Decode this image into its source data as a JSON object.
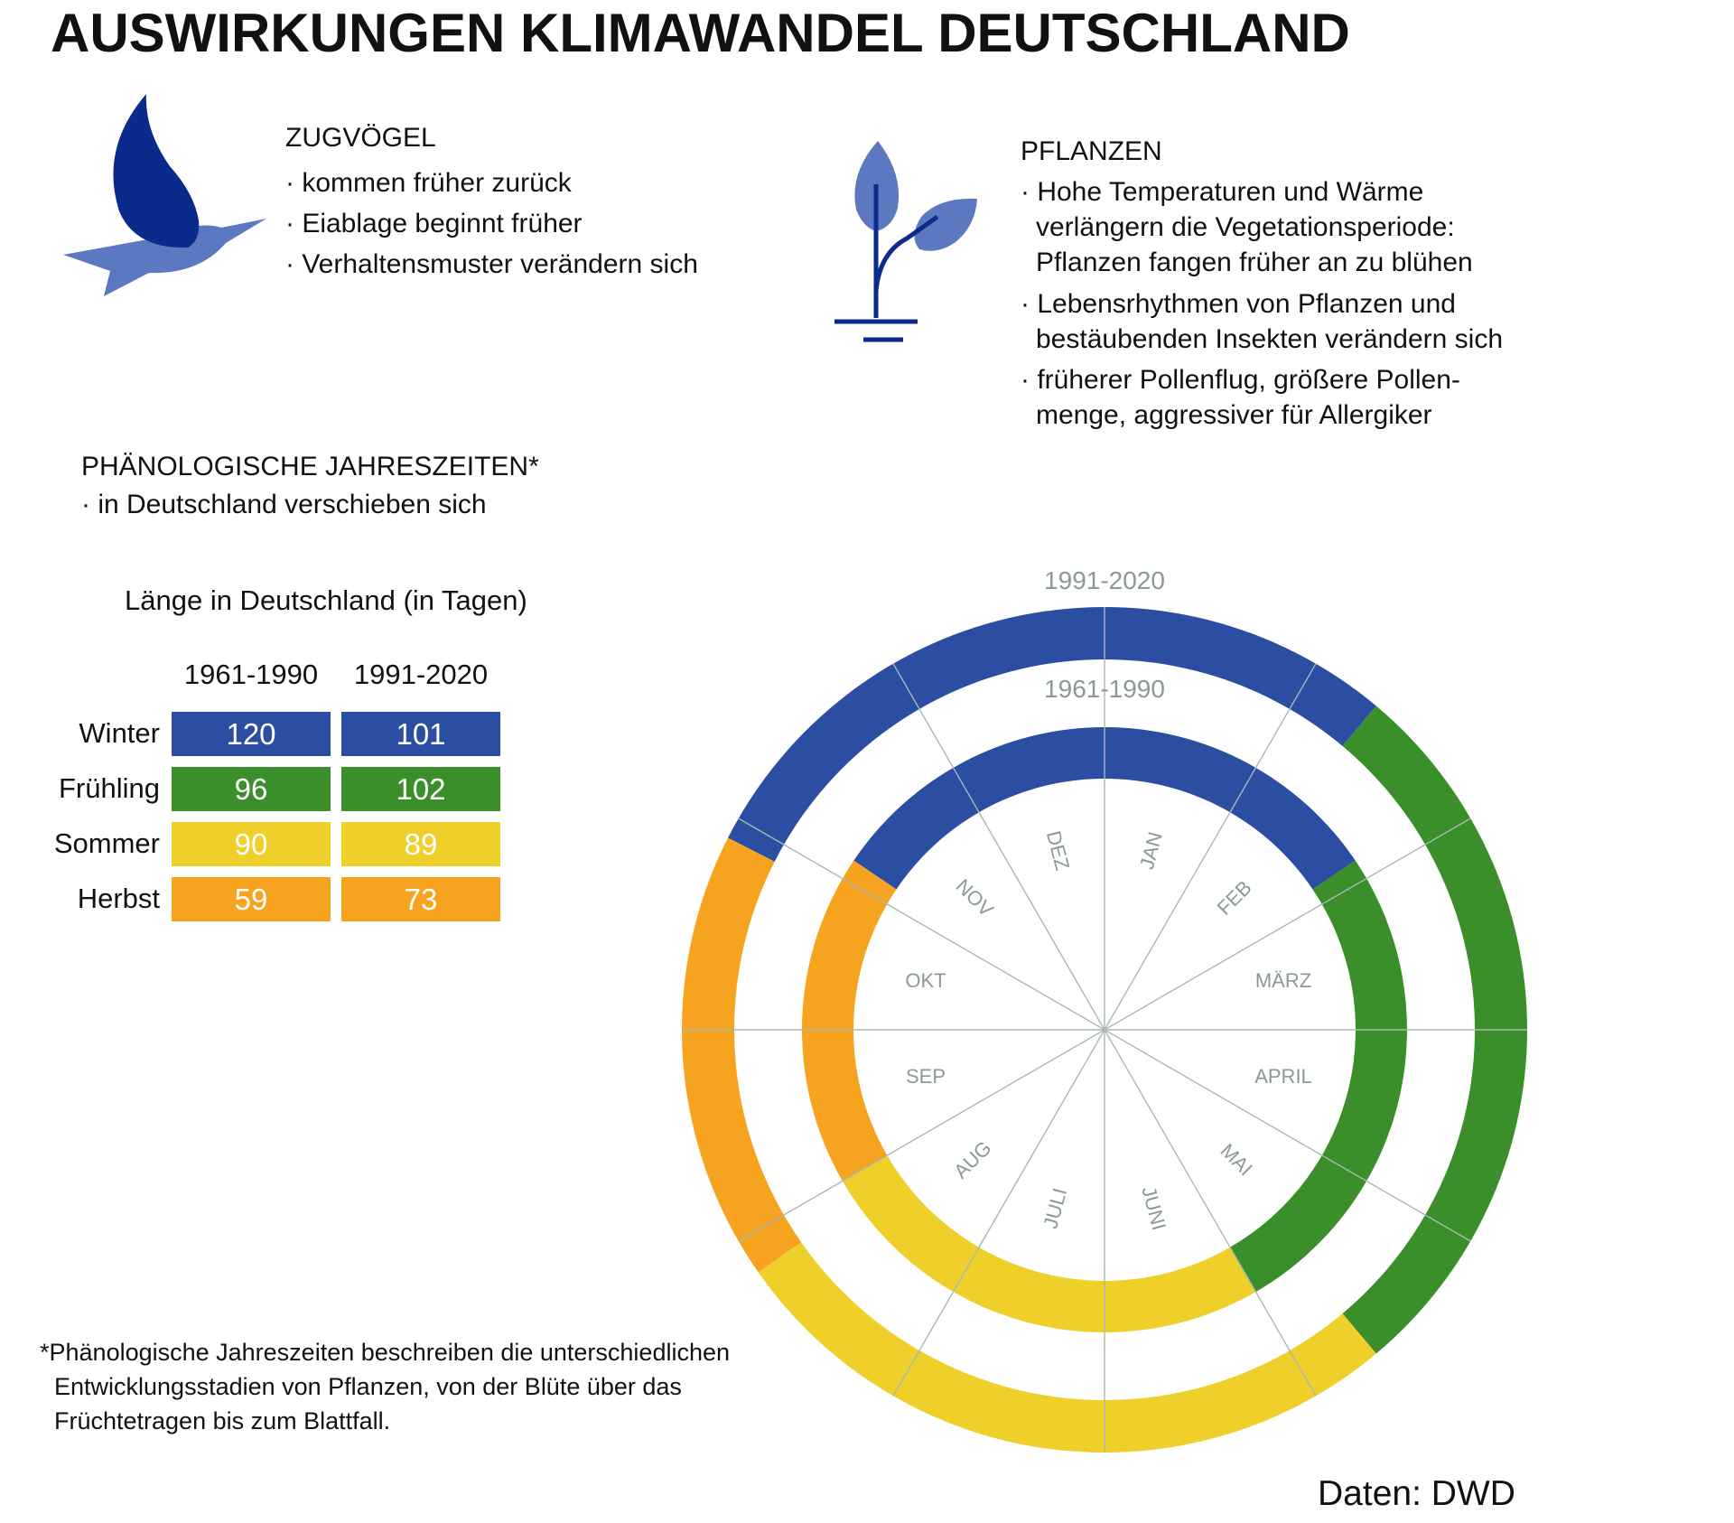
{
  "title": "AUSWIRKUNGEN KLIMAWANDEL DEUTSCHLAND",
  "zugvoegel": {
    "heading": "ZUGVÖGEL",
    "items": [
      "· kommen früher zurück",
      "· Eiablage beginnt früher",
      "· Verhaltensmuster verändern sich"
    ]
  },
  "pflanzen": {
    "heading": "PFLANZEN",
    "lines": [
      "· Hohe Temperaturen und Wärme",
      "verlängern die Vegetationsperiode:",
      "Pflanzen fangen früher an zu blühen",
      "· Lebensrhythmen von Pflanzen und",
      "bestäubenden Insekten verändern sich",
      "· früherer Pollenflug, größere Pollen-",
      "menge, aggressiver für Allergiker"
    ]
  },
  "phaeno": {
    "heading": "PHÄNOLOGISCHE JAHRESZEITEN*",
    "sub": "· in Deutschland verschieben sich"
  },
  "icons": {
    "bird": "bird-icon",
    "plant": "plant-icon"
  },
  "colors": {
    "winter": "#2b4ea3",
    "fruehling": "#3b8f2a",
    "sommer": "#efcf2a",
    "herbst": "#f6a31f",
    "bird_dark": "#0a2a8c",
    "bird_light": "#5b78c0",
    "plant_dark": "#0a2a8c",
    "plant_light": "#5b78c0",
    "axis_text": "#8a9a97"
  },
  "chart_data": {
    "type": "table",
    "title": "Länge in Deutschland (in Tagen)",
    "columns": [
      "1961-1990",
      "1991-2020"
    ],
    "rows": [
      {
        "name": "Winter",
        "key": "winter",
        "values": [
          120,
          101
        ]
      },
      {
        "name": "Frühling",
        "key": "fruehling",
        "values": [
          96,
          102
        ]
      },
      {
        "name": "Sommer",
        "key": "sommer",
        "values": [
          90,
          89
        ]
      },
      {
        "name": "Herbst",
        "key": "herbst",
        "values": [
          59,
          73
        ]
      }
    ],
    "ring_labels": {
      "outer": "1991-2020",
      "inner": "1961-1990"
    },
    "months": [
      "DEZ",
      "JAN",
      "FEB",
      "MÄRZ",
      "APRIL",
      "MAI",
      "JUNI",
      "JULI",
      "AUG",
      "SEP",
      "OKT",
      "NOV"
    ],
    "season_order": [
      "winter",
      "fruehling",
      "sommer",
      "herbst"
    ],
    "rings": [
      {
        "period": "1961-1990",
        "seasons_degrees": [
          {
            "season": "winter",
            "start": -56,
            "end": 56
          },
          {
            "season": "fruehling",
            "start": 56,
            "end": 150
          },
          {
            "season": "sommer",
            "start": 150,
            "end": 240
          },
          {
            "season": "herbst",
            "start": 240,
            "end": 304
          }
        ]
      },
      {
        "period": "1991-2020",
        "seasons_degrees": [
          {
            "season": "winter",
            "start": -63,
            "end": 40
          },
          {
            "season": "fruehling",
            "start": 40,
            "end": 140
          },
          {
            "season": "sommer",
            "start": 140,
            "end": 235
          },
          {
            "season": "herbst",
            "start": 235,
            "end": 297
          }
        ]
      }
    ]
  },
  "footnote": [
    "*Phänologische Jahreszeiten beschreiben die unterschiedlichen",
    "Entwicklungsstadien von Pflanzen, von der Blüte über das",
    "Früchtetragen bis zum Blattfall."
  ],
  "source": "Daten: DWD"
}
